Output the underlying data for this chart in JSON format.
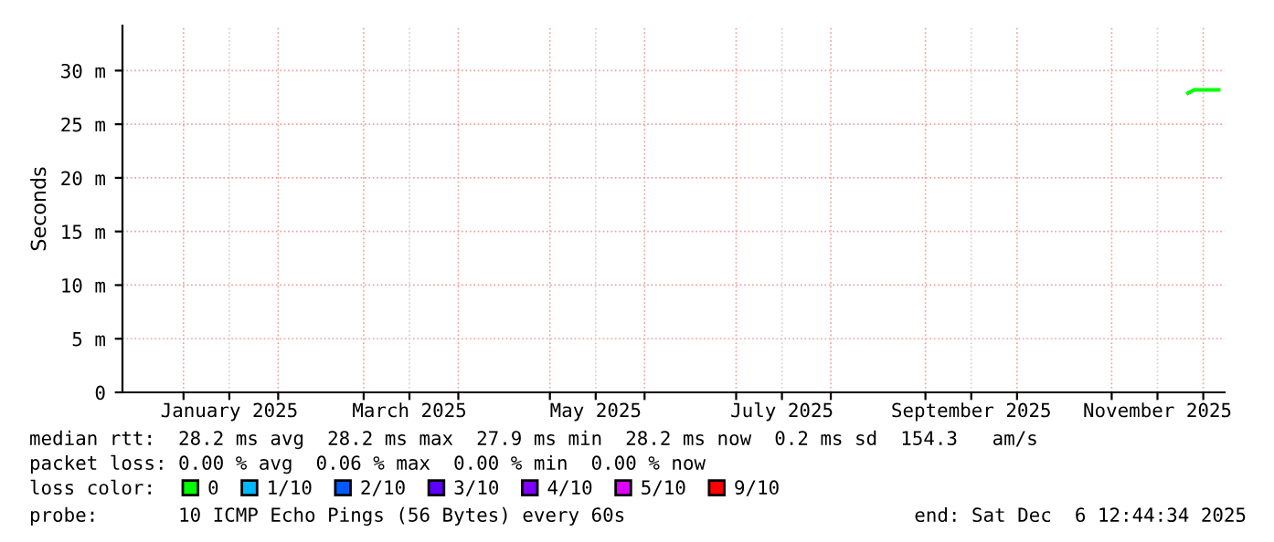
{
  "chart_data": {
    "type": "line",
    "ylabel": "Seconds",
    "xlim": [
      "2024-12-12",
      "2025-12-08"
    ],
    "ylim": [
      0,
      34.2
    ],
    "yticks": [
      0,
      {
        "value": 5,
        "label": "5 m"
      },
      {
        "value": 10,
        "label": "10 m"
      },
      {
        "value": 15,
        "label": "15 m"
      },
      {
        "value": 20,
        "label": "20 m"
      },
      {
        "value": 25,
        "label": "25 m"
      },
      {
        "value": 30,
        "label": "30 m"
      }
    ],
    "xticks": [
      {
        "value": "2025-01-01",
        "label": null
      },
      {
        "value": "2025-01-16",
        "label": "January 2025"
      },
      {
        "value": "2025-02-01",
        "label": null
      },
      {
        "value": "2025-03-01",
        "label": null
      },
      {
        "value": "2025-03-16",
        "label": "March 2025"
      },
      {
        "value": "2025-04-01",
        "label": null
      },
      {
        "value": "2025-05-01",
        "label": null
      },
      {
        "value": "2025-05-16",
        "label": "May 2025"
      },
      {
        "value": "2025-06-01",
        "label": null
      },
      {
        "value": "2025-07-01",
        "label": null
      },
      {
        "value": "2025-07-16",
        "label": "July 2025"
      },
      {
        "value": "2025-08-01",
        "label": null
      },
      {
        "value": "2025-09-01",
        "label": null
      },
      {
        "value": "2025-09-16",
        "label": "September 2025"
      },
      {
        "value": "2025-10-01",
        "label": null
      },
      {
        "value": "2025-11-01",
        "label": null
      },
      {
        "value": "2025-11-16",
        "label": "November 2025"
      },
      {
        "value": "2025-12-01",
        "label": null
      }
    ],
    "grid": true,
    "legend": "bottom",
    "legend_title": "loss color:",
    "marker": "none",
    "line_style": "solid",
    "series": [
      {
        "name": "0",
        "color": "#00ff00",
        "x": [
          "2025-11-26",
          "2025-11-28",
          "2025-11-30",
          "2025-12-02",
          "2025-12-04",
          "2025-12-06"
        ],
        "values": [
          27.9,
          28.2,
          28.2,
          28.2,
          28.2,
          28.2
        ]
      },
      {
        "name": "1/10",
        "color": "#00b8ff"
      },
      {
        "name": "2/10",
        "color": "#0059ff"
      },
      {
        "name": "3/10",
        "color": "#5e00ff"
      },
      {
        "name": "4/10",
        "color": "#7e00ff"
      },
      {
        "name": "5/10",
        "color": "#dd00ff"
      },
      {
        "name": "9/10",
        "color": "#ff0000"
      }
    ],
    "annotations": [
      "median rtt:  28.2 ms avg  28.2 ms max  27.9 ms min  28.2 ms now  0.2 ms sd  154.3   am/s",
      "packet loss: 0.00 % avg  0.06 % max  0.00 % min  0.00 % now",
      "probe:       10 ICMP Echo Pings (56 Bytes) every 60s",
      "end: Sat Dec  6 12:44:34 2025"
    ]
  }
}
